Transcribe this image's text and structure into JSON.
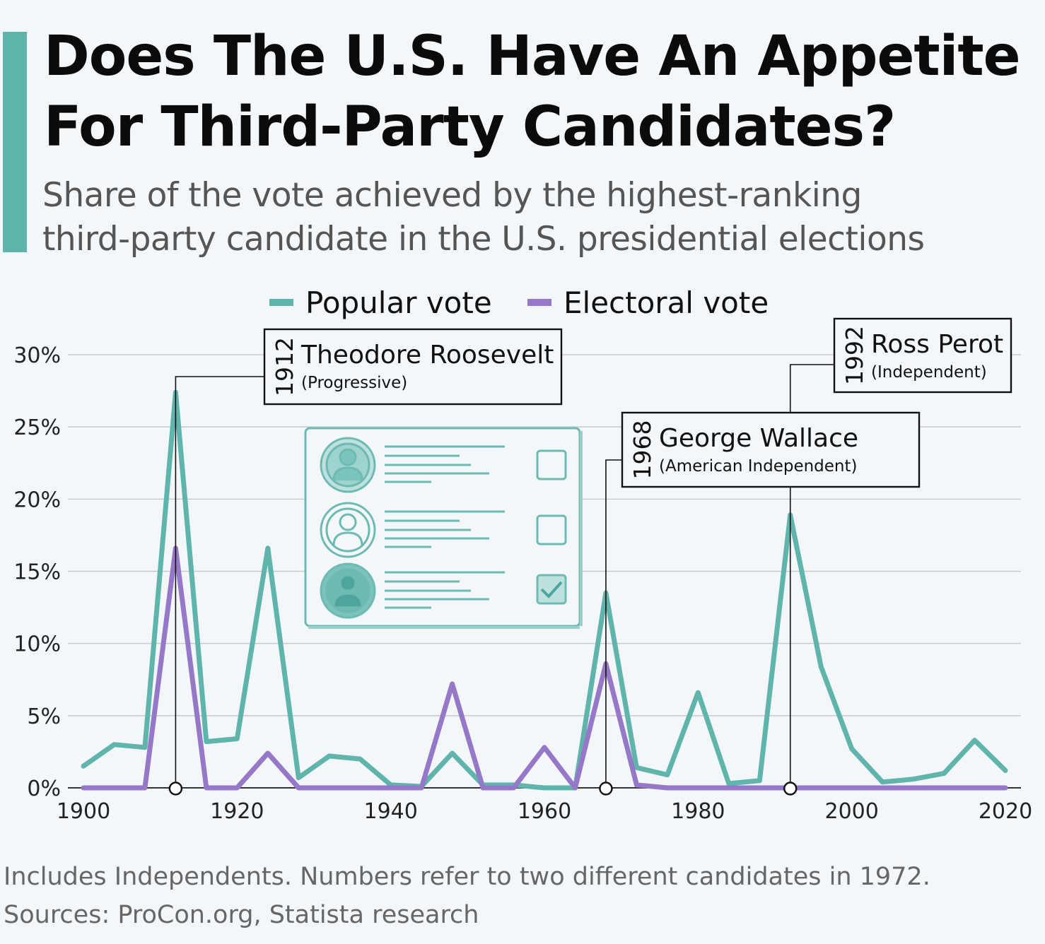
{
  "header": {
    "title_line1": "Does The U.S. Have An Appetite",
    "title_line2": "For Third-Party Candidates?",
    "subtitle_line1": "Share of the vote achieved by the highest-ranking",
    "subtitle_line2": "third-party candidate in the U.S. presidential elections"
  },
  "footer": {
    "note": "Includes Independents. Numbers refer to two different candidates in 1972.",
    "sources": "Sources: ProCon.org, Statista research"
  },
  "colors": {
    "accent": "#5fb4ac",
    "popular": "#5fb4ac",
    "electoral": "#9578c8",
    "grid": "#c9c9c9",
    "background": "#f4f7fa"
  },
  "chart_data": {
    "type": "line",
    "title": "Does The U.S. Have An Appetite For Third-Party Candidates?",
    "xlabel": "",
    "ylabel": "",
    "x": [
      1900,
      1904,
      1908,
      1912,
      1916,
      1920,
      1924,
      1928,
      1932,
      1936,
      1940,
      1944,
      1948,
      1952,
      1956,
      1960,
      1964,
      1968,
      1972,
      1976,
      1980,
      1984,
      1988,
      1992,
      1996,
      2000,
      2004,
      2008,
      2012,
      2016,
      2020
    ],
    "series": [
      {
        "name": "Popular vote",
        "color": "#5fb4ac",
        "values": [
          1.5,
          3.0,
          2.8,
          27.4,
          3.2,
          3.4,
          16.6,
          0.7,
          2.2,
          2.0,
          0.2,
          0.1,
          2.4,
          0.2,
          0.2,
          0.0,
          0.0,
          13.5,
          1.4,
          0.9,
          6.6,
          0.3,
          0.5,
          18.9,
          8.4,
          2.7,
          0.4,
          0.6,
          1.0,
          3.3,
          1.2
        ]
      },
      {
        "name": "Electoral vote",
        "color": "#9578c8",
        "values": [
          0,
          0,
          0,
          16.6,
          0,
          0,
          2.4,
          0,
          0,
          0,
          0,
          0,
          7.2,
          0,
          0,
          2.8,
          0,
          8.6,
          0.2,
          0,
          0,
          0,
          0,
          0,
          0,
          0,
          0,
          0,
          0,
          0,
          0
        ]
      }
    ],
    "xlim": [
      1900,
      2020
    ],
    "ylim": [
      0,
      30
    ],
    "x_ticks": [
      "1900",
      "1920",
      "1940",
      "1960",
      "1980",
      "2000",
      "2020"
    ],
    "y_ticks": [
      "0%",
      "5%",
      "10%",
      "15%",
      "20%",
      "25%",
      "30%"
    ],
    "grid": true,
    "legend": {
      "position": "top",
      "entries": [
        "Popular vote",
        "Electoral vote"
      ]
    },
    "annotations": [
      {
        "year": "1912",
        "x": 1912,
        "name": "Theodore Roosevelt",
        "party": "(Progressive)"
      },
      {
        "year": "1968",
        "x": 1968,
        "name": "George Wallace",
        "party": "(American Independent)"
      },
      {
        "year": "1992",
        "x": 1992,
        "name": "Ross Perot",
        "party": "(Independent)"
      }
    ]
  }
}
